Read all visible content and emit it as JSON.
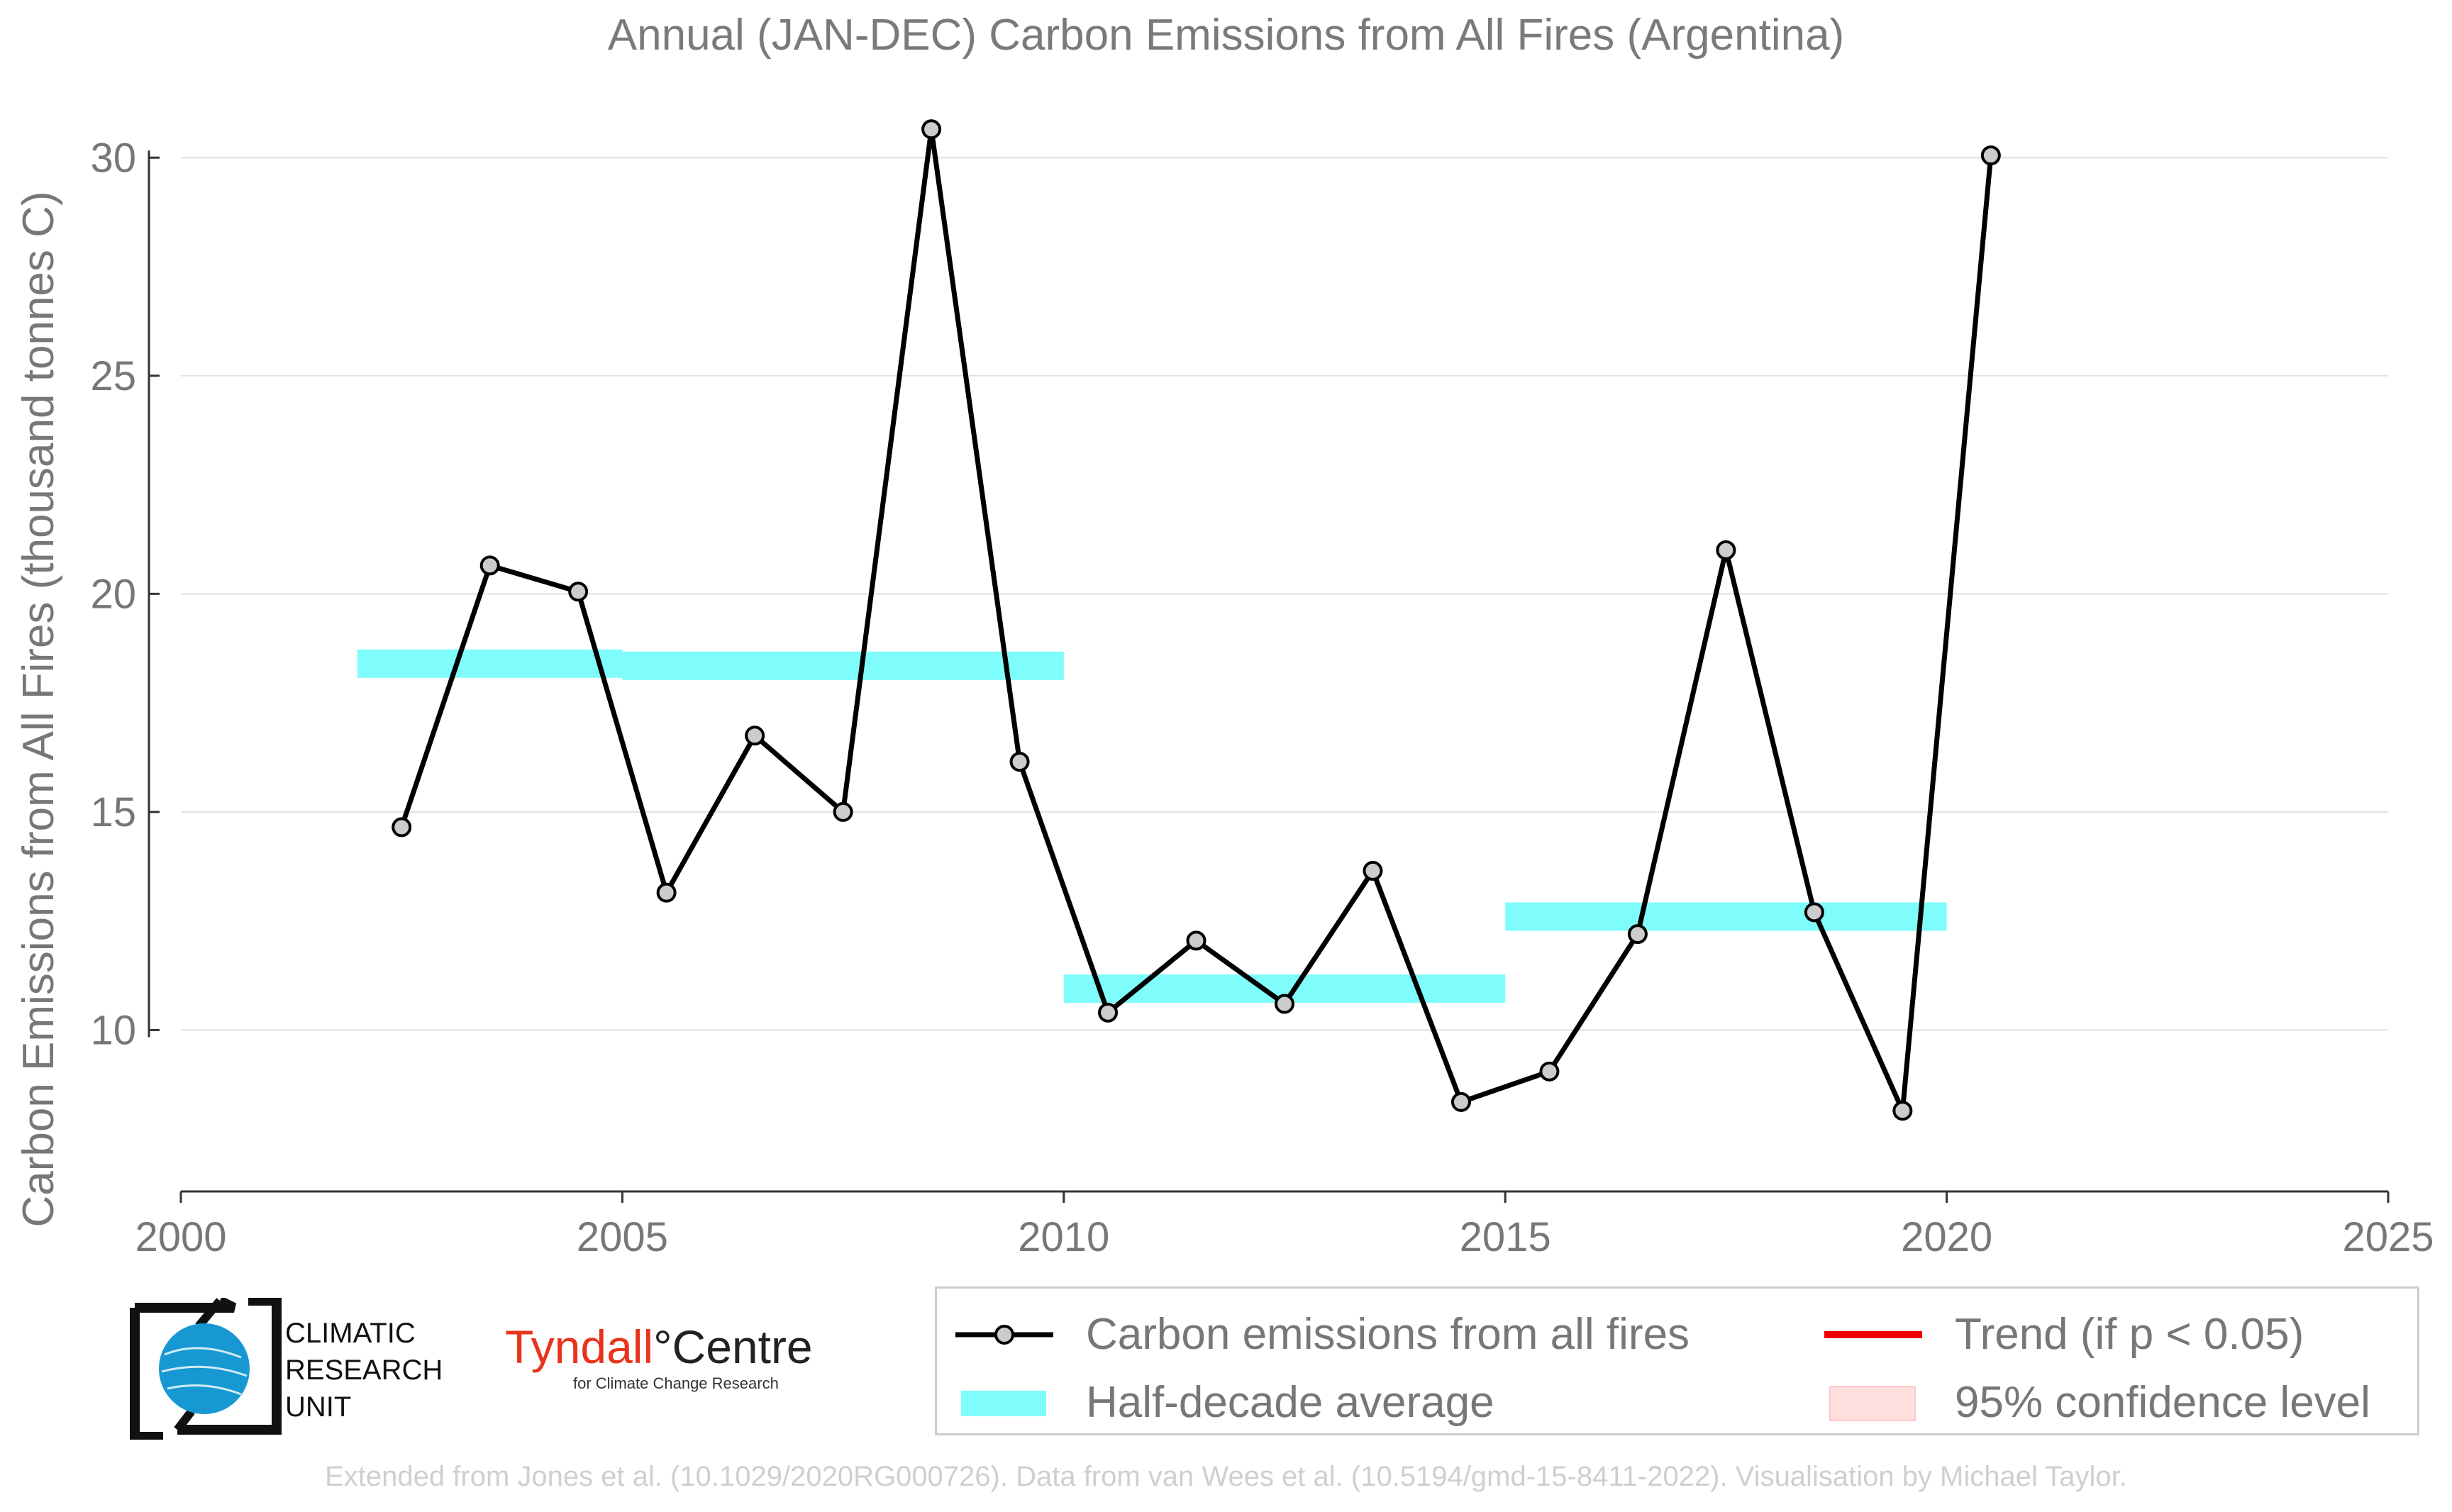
{
  "title": "Annual (JAN-DEC) Carbon Emissions from All Fires (Argentina)",
  "credit": "Extended from Jones et al. (10.1029/2020RG000726). Data from van Wees et al. (10.5194/gmd-15-8411-2022). Visualisation by Michael Taylor.",
  "logos": {
    "cru_lines": [
      "CLIMATIC",
      "RESEARCH",
      "UNIT"
    ],
    "tyndall_name": "Tyndall",
    "tyndall_degree": "°",
    "tyndall_centre": "Centre",
    "tyndall_sub": "for Climate Change Research"
  },
  "legend": {
    "series": "Carbon emissions from all fires",
    "half_decade": "Half-decade average",
    "trend": "Trend (if p < 0.05)",
    "confidence": "95% confidence level"
  },
  "colors": {
    "line": "#000000",
    "marker_fill": "#cccccc",
    "half_decade": "#7ffcfc",
    "trend": "#ee0000",
    "confidence": "#ffdede",
    "axis_text": "#777777",
    "grid": "#e0e0e0"
  },
  "chart_data": {
    "type": "line",
    "title": "Annual (JAN-DEC) Carbon Emissions from All Fires (Argentina)",
    "xlabel": "",
    "ylabel": "Carbon Emissions from All Fires (thousand tonnes C)",
    "xlim": [
      2000,
      2025
    ],
    "ylim": [
      6.3,
      31.5
    ],
    "xticks": [
      2000,
      2005,
      2010,
      2015,
      2020,
      2025
    ],
    "yticks": [
      10,
      15,
      20,
      25,
      30
    ],
    "grid": "horizontal",
    "legend_position": "bottom-right",
    "series": [
      {
        "name": "Carbon emissions from all fires",
        "x": [
          2002.5,
          2003.5,
          2004.5,
          2005.5,
          2006.5,
          2007.5,
          2008.5,
          2009.5,
          2010.5,
          2011.5,
          2012.5,
          2013.5,
          2014.5,
          2015.5,
          2016.5,
          2017.5,
          2018.5,
          2019.5,
          2020.5
        ],
        "values": [
          14.65,
          20.65,
          20.05,
          13.15,
          16.75,
          15.0,
          30.65,
          16.15,
          10.4,
          12.05,
          10.6,
          13.65,
          8.35,
          9.05,
          12.2,
          21.0,
          12.7,
          8.15,
          30.05
        ]
      }
    ],
    "half_decade_averages": [
      {
        "start": 2002,
        "end": 2005,
        "value": 18.4
      },
      {
        "start": 2005,
        "end": 2010,
        "value": 18.35
      },
      {
        "start": 2010,
        "end": 2015,
        "value": 10.95
      },
      {
        "start": 2015,
        "end": 2020,
        "value": 12.6
      }
    ]
  }
}
